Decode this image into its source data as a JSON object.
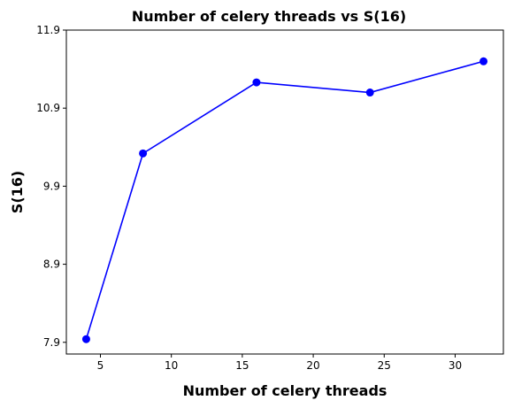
{
  "chart_data": {
    "type": "line",
    "title": "Number of celery threads vs S(16)",
    "xlabel": "Number of celery threads",
    "ylabel": "S(16)",
    "x": [
      4,
      8,
      16,
      24,
      32
    ],
    "series": [
      {
        "values": [
          7.94,
          10.32,
          11.23,
          11.1,
          11.5
        ],
        "color": "#0000ff",
        "marker": "circle"
      }
    ],
    "xticks": [
      5,
      10,
      15,
      20,
      25,
      30
    ],
    "xtick_labels": [
      "5",
      "10",
      "15",
      "20",
      "25",
      "30"
    ],
    "yticks": [
      7.9,
      8.9,
      9.9,
      10.9,
      11.9
    ],
    "ytick_labels": [
      "7.9",
      "8.9",
      "9.9",
      "10.9",
      "11.9"
    ],
    "xlim": [
      2.6,
      33.4
    ],
    "ylim": [
      7.75,
      11.9
    ],
    "grid": false,
    "legend": false
  }
}
